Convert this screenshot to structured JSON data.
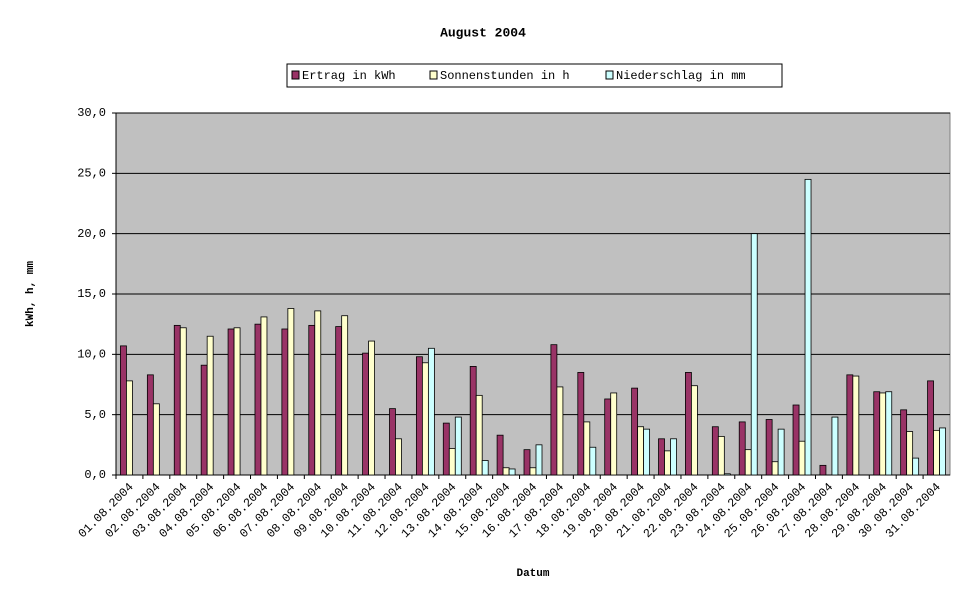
{
  "chart_data": {
    "type": "bar",
    "title": "August 2004",
    "x_label": "Datum",
    "y_label": "kWh, h, mm",
    "categories": [
      "01.08.2004",
      "02.08.2004",
      "03.08.2004",
      "04.08.2004",
      "05.08.2004",
      "06.08.2004",
      "07.08.2004",
      "08.08.2004",
      "09.08.2004",
      "10.08.2004",
      "11.08.2004",
      "12.08.2004",
      "13.08.2004",
      "14.08.2004",
      "15.08.2004",
      "16.08.2004",
      "17.08.2004",
      "18.08.2004",
      "19.08.2004",
      "20.08.2004",
      "21.08.2004",
      "22.08.2004",
      "23.08.2004",
      "24.08.2004",
      "25.08.2004",
      "26.08.2004",
      "27.08.2004",
      "28.08.2004",
      "29.08.2004",
      "30.08.2004",
      "31.08.2004"
    ],
    "series": [
      {
        "name": "Ertrag in kWh",
        "color": "#993366",
        "values": [
          10.7,
          8.3,
          12.4,
          9.1,
          12.1,
          12.5,
          12.1,
          12.4,
          12.3,
          10.1,
          5.5,
          9.8,
          4.3,
          9.0,
          3.3,
          2.1,
          10.8,
          8.5,
          6.3,
          7.2,
          3.0,
          8.5,
          4.0,
          4.4,
          4.6,
          5.8,
          0.8,
          8.3,
          6.9,
          5.4,
          7.8
        ]
      },
      {
        "name": "Sonnenstunden in h",
        "color": "#ffffcc",
        "values": [
          7.8,
          5.9,
          12.2,
          11.5,
          12.2,
          13.1,
          13.8,
          13.6,
          13.2,
          11.1,
          3.0,
          9.3,
          2.2,
          6.6,
          0.6,
          0.6,
          7.3,
          4.4,
          6.8,
          4.0,
          2.0,
          7.4,
          3.2,
          2.1,
          1.1,
          2.8,
          0,
          8.2,
          6.8,
          3.6,
          3.7
        ]
      },
      {
        "name": "Niederschlag in mm",
        "color": "#ccffff",
        "values": [
          0,
          0,
          0,
          0,
          0,
          0,
          0,
          0,
          0,
          0,
          0,
          10.5,
          4.8,
          1.2,
          0.5,
          2.5,
          0,
          2.3,
          0,
          3.8,
          3.0,
          0,
          0.1,
          20.0,
          3.8,
          24.5,
          4.8,
          0,
          6.9,
          1.4,
          3.9
        ]
      }
    ],
    "ylim": [
      0,
      30
    ],
    "yticks": [
      {
        "value": 0,
        "label": "0,0"
      },
      {
        "value": 5,
        "label": "5,0"
      },
      {
        "value": 10,
        "label": "10,0"
      },
      {
        "value": 15,
        "label": "15,0"
      },
      {
        "value": 20,
        "label": "20,0"
      },
      {
        "value": 25,
        "label": "25,0"
      },
      {
        "value": 30,
        "label": "30,0"
      }
    ],
    "grid": true,
    "plot_background": "#c0c0c0"
  }
}
